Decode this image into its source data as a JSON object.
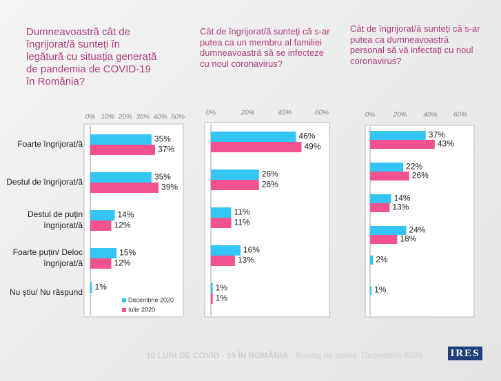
{
  "chart_data": [
    {
      "type": "bar",
      "orientation": "horizontal",
      "title": "Dumneavoastră cât de îngrijorat/ă sunteți în legătură cu situația generată de pandemia de COVID-19 în România?",
      "categories": [
        "Foarte îngrijorat/ă",
        "Destul de îngrijorat/ă",
        "Destul de puțin îngrijorat/ă",
        "Foarte puțin/ Deloc îngrijorat/ă",
        "Nu știu/ Nu răspund"
      ],
      "series": [
        {
          "name": "Decembrie 2020",
          "color": "#33c5f3",
          "values": [
            35,
            35,
            14,
            15,
            1
          ],
          "value_labels": [
            "35%",
            "35%",
            "14%",
            "15%",
            "1%"
          ]
        },
        {
          "name": "Iulie 2020",
          "color": "#f2528f",
          "values": [
            37,
            39,
            12,
            12,
            null
          ],
          "value_labels": [
            "37%",
            "39%",
            "12%",
            "12%",
            null
          ]
        }
      ],
      "xlim": [
        0,
        50
      ],
      "xticks": [
        {
          "value": 0,
          "label": "0%"
        },
        {
          "value": 10,
          "label": "10%"
        },
        {
          "value": 20,
          "label": "20%"
        },
        {
          "value": 30,
          "label": "30%"
        },
        {
          "value": 40,
          "label": "40%"
        },
        {
          "value": 50,
          "label": "50%"
        }
      ]
    },
    {
      "type": "bar",
      "orientation": "horizontal",
      "title": "Cât de îngrijorat/ă sunteți că s-ar putea ca un membru al familiei dumneavoastră să se infecteze cu noul coronavirus?",
      "categories": [
        null,
        null,
        null,
        null,
        null
      ],
      "series": [
        {
          "color": "#33c5f3",
          "values": [
            46,
            26,
            11,
            16,
            1
          ],
          "value_labels": [
            "46%",
            "26%",
            "11%",
            "16%",
            "1%"
          ]
        },
        {
          "color": "#f2528f",
          "values": [
            49,
            26,
            11,
            13,
            1
          ],
          "value_labels": [
            "49%",
            "26%",
            "11%",
            "13%",
            "1%"
          ]
        }
      ],
      "xlim": [
        0,
        60
      ],
      "xticks": [
        {
          "value": 0,
          "label": "0%"
        },
        {
          "value": 20,
          "label": "20%"
        },
        {
          "value": 40,
          "label": "40%"
        },
        {
          "value": 60,
          "label": "60%"
        }
      ]
    },
    {
      "type": "bar",
      "orientation": "horizontal",
      "title": "Cât de îngrijorat/ă sunteți că s-ar putea ca dumneavoastră personal să vă infectați cu noul coronavirus?",
      "categories": [
        null,
        null,
        null,
        null,
        null,
        null
      ],
      "series": [
        {
          "color": "#33c5f3",
          "values": [
            37,
            22,
            14,
            24,
            2,
            1
          ],
          "value_labels": [
            "37%",
            "22%",
            "14%",
            "24%",
            "2%",
            "1%"
          ]
        },
        {
          "color": "#f2528f",
          "values": [
            43,
            26,
            13,
            18,
            null,
            null
          ],
          "value_labels": [
            "43%",
            "26%",
            "13%",
            "18%",
            null,
            null
          ]
        }
      ],
      "xlim": [
        0,
        60
      ],
      "xticks": [
        {
          "value": 0,
          "label": "0%"
        },
        {
          "value": 20,
          "label": "20%"
        },
        {
          "value": 40,
          "label": "40%"
        },
        {
          "value": 60,
          "label": "60%"
        }
      ]
    }
  ],
  "footer": {
    "text": "10 LUNI DE COVID - 19 ÎN ROMÂNIA",
    "subtext": "- Sondaj de opinie, Decembrie 2020",
    "logo": "IRES"
  }
}
